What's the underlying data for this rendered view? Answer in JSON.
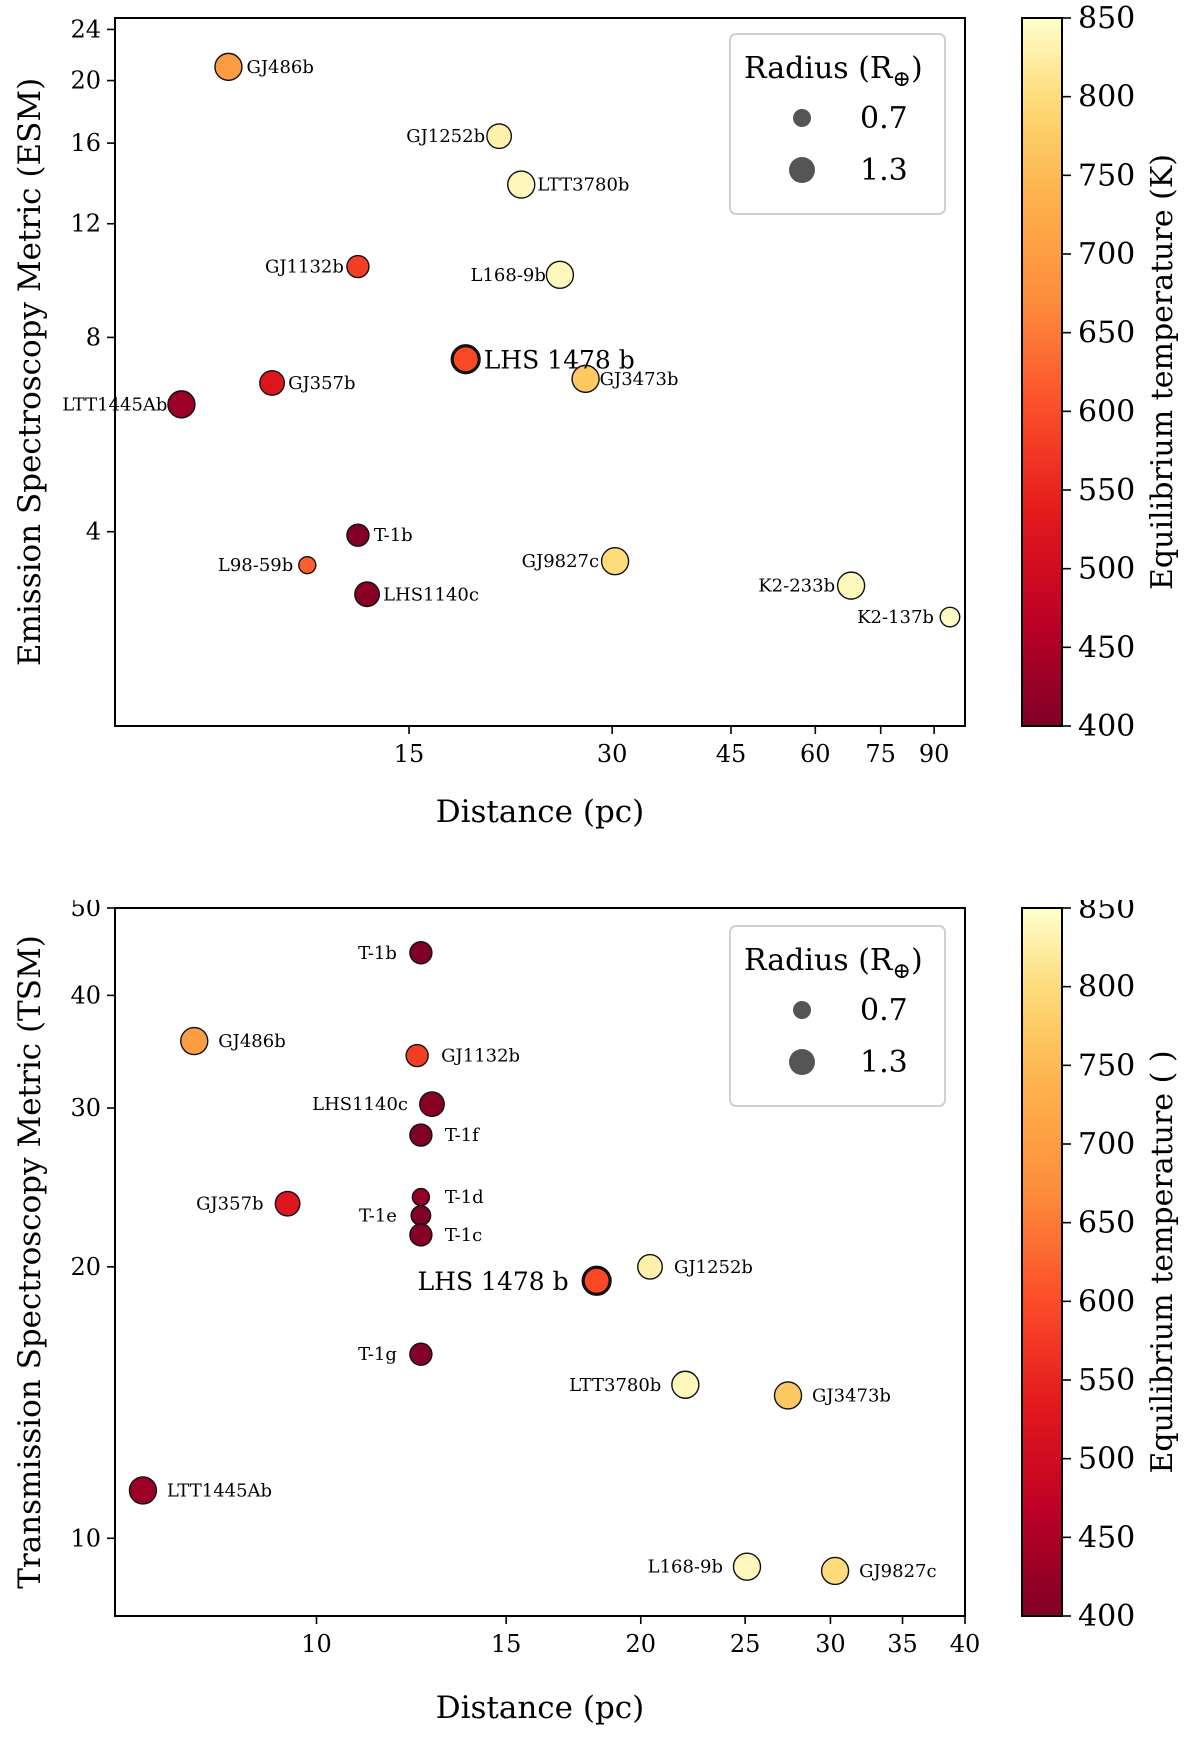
{
  "chart_data": [
    {
      "type": "scatter",
      "id": "esm",
      "xlabel": "Distance (pc)",
      "ylabel": "Emission Spectroscopy Metric (ESM)",
      "xscale": "log",
      "yscale": "log",
      "xlim": [
        5.5,
        100
      ],
      "ylim": [
        2.0,
        25
      ],
      "xticks": [
        15,
        30,
        45,
        60,
        75,
        90
      ],
      "yticks": [
        4,
        8,
        12,
        16,
        20,
        24
      ],
      "points": [
        {
          "name": "GJ486b",
          "x": 8.1,
          "y": 21.0,
          "teq": 700,
          "radius": 1.3
        },
        {
          "name": "GJ1252b",
          "x": 20.4,
          "y": 16.4,
          "teq": 830,
          "radius": 1.2
        },
        {
          "name": "LTT3780b",
          "x": 22.0,
          "y": 13.8,
          "teq": 840,
          "radius": 1.3
        },
        {
          "name": "GJ1132b",
          "x": 12.6,
          "y": 10.3,
          "teq": 580,
          "radius": 1.1
        },
        {
          "name": "L168-9b",
          "x": 25.1,
          "y": 10.0,
          "teq": 840,
          "radius": 1.3
        },
        {
          "name": "LHS 1478 b",
          "x": 18.2,
          "y": 7.4,
          "teq": 595,
          "radius": 1.3,
          "highlight": true
        },
        {
          "name": "GJ357b",
          "x": 9.4,
          "y": 6.8,
          "teq": 525,
          "radius": 1.2
        },
        {
          "name": "GJ3473b",
          "x": 27.4,
          "y": 6.9,
          "teq": 770,
          "radius": 1.3
        },
        {
          "name": "LTT1445Ab",
          "x": 6.9,
          "y": 6.3,
          "teq": 430,
          "radius": 1.3
        },
        {
          "name": "T-1b",
          "x": 12.6,
          "y": 3.95,
          "teq": 400,
          "radius": 1.1
        },
        {
          "name": "L98-59b",
          "x": 10.6,
          "y": 3.55,
          "teq": 620,
          "radius": 0.9
        },
        {
          "name": "GJ9827c",
          "x": 30.3,
          "y": 3.6,
          "teq": 800,
          "radius": 1.3
        },
        {
          "name": "LHS1140c",
          "x": 13.0,
          "y": 3.2,
          "teq": 410,
          "radius": 1.2
        },
        {
          "name": "K2-233b",
          "x": 67.8,
          "y": 3.3,
          "teq": 840,
          "radius": 1.3
        },
        {
          "name": "K2-137b",
          "x": 95.0,
          "y": 2.95,
          "teq": 845,
          "radius": 1.0
        }
      ],
      "legend": {
        "title_main": "Radius (R",
        "title_sym": "⊕",
        "title_end": ")",
        "sizes": [
          "0.7",
          "1.3"
        ],
        "position": "upper-right"
      },
      "colorbar": {
        "label": "Equilibrium temperature (K)",
        "min": 400,
        "max": 850,
        "ticks": [
          400,
          450,
          500,
          550,
          600,
          650,
          700,
          750,
          800,
          850
        ]
      }
    },
    {
      "type": "scatter",
      "id": "tsm",
      "xlabel": "Distance (pc)",
      "ylabel": "Transmission Spectroscopy Metric (TSM)",
      "xscale": "log",
      "yscale": "log",
      "xlim": [
        6.5,
        40
      ],
      "ylim": [
        8.2,
        50
      ],
      "xticks": [
        10,
        15,
        20,
        25,
        30,
        35,
        40
      ],
      "yticks": [
        10,
        20,
        30,
        40,
        50
      ],
      "points": [
        {
          "name": "T-1b",
          "x": 12.5,
          "y": 44.6,
          "teq": 400,
          "radius": 1.1
        },
        {
          "name": "GJ486b",
          "x": 7.7,
          "y": 35.6,
          "teq": 700,
          "radius": 1.3
        },
        {
          "name": "GJ1132b",
          "x": 12.4,
          "y": 34.3,
          "teq": 580,
          "radius": 1.1
        },
        {
          "name": "LHS1140c",
          "x": 12.8,
          "y": 30.3,
          "teq": 410,
          "radius": 1.2
        },
        {
          "name": "T-1f",
          "x": 12.5,
          "y": 28.0,
          "teq": 400,
          "radius": 1.1
        },
        {
          "name": "GJ357b",
          "x": 9.4,
          "y": 23.5,
          "teq": 525,
          "radius": 1.2
        },
        {
          "name": "T-1d",
          "x": 12.5,
          "y": 23.9,
          "teq": 420,
          "radius": 0.9
        },
        {
          "name": "T-1e",
          "x": 12.5,
          "y": 22.8,
          "teq": 400,
          "radius": 1.0
        },
        {
          "name": "T-1c",
          "x": 12.5,
          "y": 21.7,
          "teq": 410,
          "radius": 1.1
        },
        {
          "name": "GJ1252b",
          "x": 20.4,
          "y": 20.0,
          "teq": 830,
          "radius": 1.2
        },
        {
          "name": "LHS 1478 b",
          "x": 18.2,
          "y": 19.3,
          "teq": 595,
          "radius": 1.3,
          "highlight": true
        },
        {
          "name": "T-1g",
          "x": 12.5,
          "y": 16.0,
          "teq": 405,
          "radius": 1.1
        },
        {
          "name": "LTT3780b",
          "x": 22.0,
          "y": 14.8,
          "teq": 840,
          "radius": 1.3
        },
        {
          "name": "GJ3473b",
          "x": 27.4,
          "y": 14.4,
          "teq": 770,
          "radius": 1.3
        },
        {
          "name": "LTT1445Ab",
          "x": 6.9,
          "y": 11.3,
          "teq": 430,
          "radius": 1.3
        },
        {
          "name": "L168-9b",
          "x": 25.1,
          "y": 9.3,
          "teq": 840,
          "radius": 1.3
        },
        {
          "name": "GJ9827c",
          "x": 30.3,
          "y": 9.2,
          "teq": 800,
          "radius": 1.3
        }
      ],
      "legend": {
        "title_main": "Radius (R",
        "title_sym": "⊕",
        "title_end": ")",
        "sizes": [
          "0.7",
          "1.3"
        ],
        "position": "upper-right"
      },
      "colorbar": {
        "label": "Equilibrium temperature ( )",
        "min": 400,
        "max": 850,
        "ticks": [
          400,
          450,
          500,
          550,
          600,
          650,
          700,
          750,
          800,
          850
        ]
      }
    }
  ]
}
